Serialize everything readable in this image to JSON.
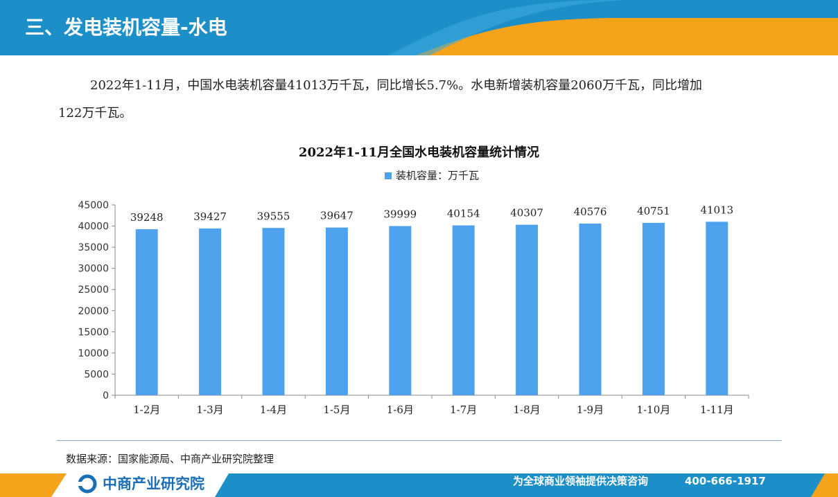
{
  "header": {
    "title": "三、发电装机容量-水电",
    "colors": {
      "blue": "#1d8fc8",
      "orange": "#f5a31a"
    }
  },
  "paragraph": {
    "line1": "2022年1-11月，中国水电装机容量41013万千瓦，同比增长5.7%。水电新增装机容量2060万千瓦，同比增加",
    "line2": "122万千瓦。"
  },
  "chart_data": {
    "type": "bar",
    "title": "2022年1-11月全国水电装机容量统计情况",
    "categories": [
      "1-2月",
      "1-3月",
      "1-4月",
      "1-5月",
      "1-6月",
      "1-7月",
      "1-8月",
      "1-9月",
      "1-10月",
      "1-11月"
    ],
    "series": [
      {
        "name": "装机容量：万千瓦",
        "values": [
          39248,
          39427,
          39555,
          39647,
          39999,
          40154,
          40307,
          40576,
          40751,
          41013
        ],
        "color": "#4ea1ec"
      }
    ],
    "ylim": [
      0,
      45000
    ],
    "yticks": [
      0,
      5000,
      10000,
      15000,
      20000,
      25000,
      30000,
      35000,
      40000,
      45000
    ],
    "grid": false,
    "legend": "top-center",
    "data_labels": true
  },
  "footer": {
    "source": "数据来源：国家能源局、中商产业研究院整理",
    "brand": "中商产业研究院",
    "slogan": "为全球商业领袖提供决策咨询",
    "phone": "400-666-1917"
  }
}
